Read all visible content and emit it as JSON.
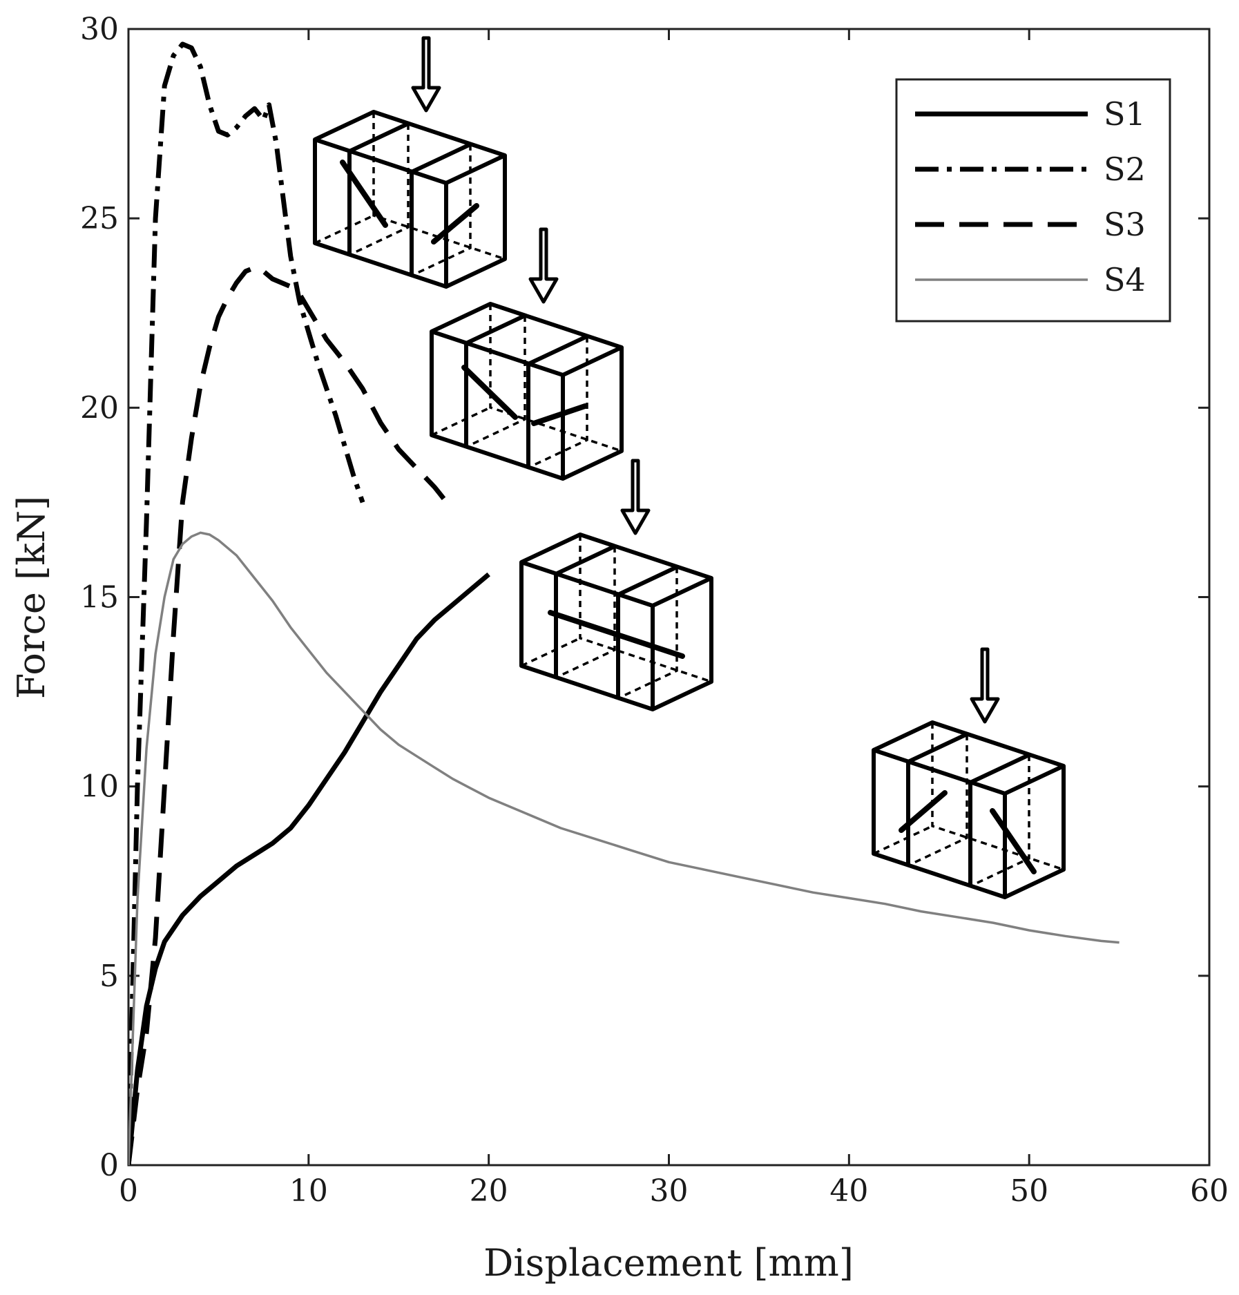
{
  "chart_data": {
    "type": "line",
    "xlabel": "Displacement [mm]",
    "ylabel": "Force [kN]",
    "xlim": [
      0,
      60
    ],
    "ylim": [
      0,
      30
    ],
    "xticks": [
      0,
      10,
      20,
      30,
      40,
      50,
      60
    ],
    "yticks": [
      0,
      5,
      10,
      15,
      20,
      25,
      30
    ],
    "grid": false,
    "legend_position": "top-right",
    "series": [
      {
        "name": "S1",
        "style": "solid",
        "color": "#000000",
        "x": [
          0,
          0.5,
          1,
          1.5,
          2,
          3,
          4,
          5,
          6,
          7,
          8,
          9,
          10,
          11,
          12,
          13,
          14,
          15,
          16,
          17,
          18,
          19,
          20
        ],
        "y": [
          0,
          2.5,
          4.2,
          5.2,
          5.9,
          6.6,
          7.1,
          7.5,
          7.9,
          8.2,
          8.5,
          8.9,
          9.5,
          10.2,
          10.9,
          11.7,
          12.5,
          13.2,
          13.9,
          14.4,
          14.8,
          15.2,
          15.6
        ]
      },
      {
        "name": "S2",
        "style": "dashdot",
        "color": "#000000",
        "x": [
          0,
          0.5,
          1,
          1.5,
          2,
          2.5,
          3,
          3.5,
          4,
          4.5,
          5,
          5.5,
          6,
          6.5,
          7,
          7.5,
          7.8,
          8.2,
          8.6,
          9,
          9.5,
          10,
          10.5,
          11,
          11.5,
          12,
          12.5,
          13
        ],
        "y": [
          0,
          10,
          17,
          25,
          28.5,
          29.3,
          29.6,
          29.5,
          29.0,
          28.0,
          27.3,
          27.2,
          27.4,
          27.7,
          27.9,
          27.6,
          28.0,
          27.0,
          25.5,
          24.0,
          22.8,
          22.0,
          21.2,
          20.5,
          19.8,
          19.0,
          18.2,
          17.5
        ]
      },
      {
        "name": "S3",
        "style": "dashed",
        "color": "#000000",
        "x": [
          0,
          0.5,
          1,
          1.5,
          2,
          2.5,
          3,
          3.5,
          4,
          4.5,
          5,
          5.5,
          6,
          6.5,
          7,
          7.5,
          8,
          8.5,
          9,
          9.5,
          10,
          10.5,
          11,
          11.5,
          12,
          13,
          14,
          15,
          16,
          17,
          17.5
        ],
        "y": [
          0,
          2,
          3.5,
          6,
          10,
          14,
          17.5,
          19.2,
          20.6,
          21.6,
          22.4,
          22.9,
          23.3,
          23.6,
          23.7,
          23.6,
          23.4,
          23.3,
          23.2,
          23.0,
          22.6,
          22.2,
          21.8,
          21.5,
          21.2,
          20.5,
          19.6,
          18.9,
          18.4,
          17.9,
          17.6
        ]
      },
      {
        "name": "S4",
        "style": "solid",
        "color": "#808080",
        "x": [
          0,
          0.5,
          1,
          1.5,
          2,
          2.5,
          3,
          3.5,
          4,
          4.5,
          5,
          6,
          7,
          8,
          9,
          10,
          11,
          12,
          13,
          14,
          15,
          16,
          17,
          18,
          19,
          20,
          22,
          24,
          26,
          28,
          30,
          32,
          34,
          36,
          38,
          40,
          42,
          44,
          46,
          48,
          50,
          52,
          54,
          55
        ],
        "y": [
          0,
          7,
          11,
          13.5,
          15,
          16.0,
          16.4,
          16.6,
          16.7,
          16.65,
          16.5,
          16.1,
          15.5,
          14.9,
          14.2,
          13.6,
          13.0,
          12.5,
          12.0,
          11.5,
          11.1,
          10.8,
          10.5,
          10.2,
          9.95,
          9.7,
          9.3,
          8.9,
          8.6,
          8.3,
          8.0,
          7.8,
          7.6,
          7.4,
          7.2,
          7.05,
          6.9,
          6.7,
          6.55,
          6.4,
          6.2,
          6.05,
          5.92,
          5.88
        ]
      }
    ]
  }
}
